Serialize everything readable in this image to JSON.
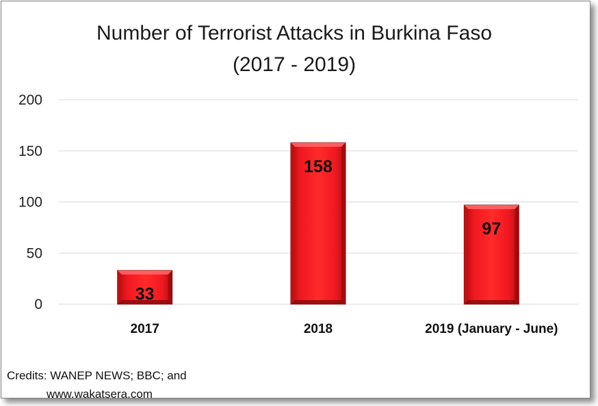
{
  "chart_data": {
    "type": "bar",
    "title": [
      "Number of Terrorist Attacks in Burkina Faso",
      "(2017 - 2019)"
    ],
    "categories": [
      "2017",
      "2018",
      "2019 (January - June)"
    ],
    "values": [
      33,
      158,
      97
    ],
    "ylim": [
      0,
      200
    ],
    "yticks": [
      0,
      50,
      100,
      150,
      200
    ],
    "xlabel": "",
    "ylabel": "",
    "grid": true,
    "legend": "none",
    "bar_color": "#e8141c",
    "bar_highlight": "#ff6a6a",
    "bar_shadow": "#8e0a0a"
  },
  "credits": [
    "Credits: WANEP NEWS; BBC; and",
    "www.wakatsera.com"
  ]
}
